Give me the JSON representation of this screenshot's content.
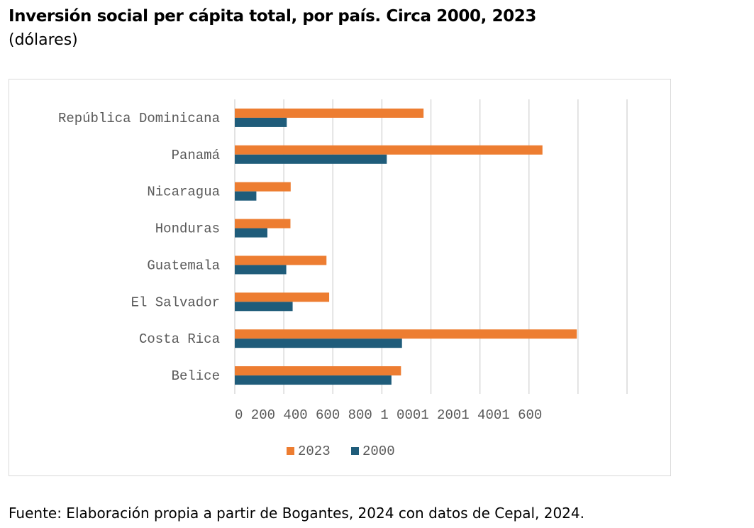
{
  "header": {
    "title": "Inversión social per cápita total, por país. Circa 2000, 2023",
    "subtitle": "(dólares)"
  },
  "footer": {
    "source": "Fuente: Elaboración propia a partir de Bogantes, 2024 con datos de Cepal, 2024."
  },
  "colors": {
    "series_2023": "#ed7d31",
    "series_2000": "#1f5c7a",
    "grid": "#d9d9d9",
    "label_text": "#595959"
  },
  "chart_data": {
    "type": "bar",
    "orientation": "horizontal",
    "title": "Inversión social per cápita total, por país. Circa 2000, 2023",
    "subtitle": "(dólares)",
    "categories": [
      "República Dominicana",
      "Panamá",
      "Nicaragua",
      "Honduras",
      "Guatemala",
      "El Salvador",
      "Costa Rica",
      "Belice"
    ],
    "series": [
      {
        "name": "2023",
        "values": [
          770,
          1255,
          228,
          227,
          374,
          385,
          1395,
          678
        ]
      },
      {
        "name": "2000",
        "values": [
          212,
          620,
          88,
          133,
          210,
          236,
          682,
          639
        ]
      }
    ],
    "x_tick_labels": [
      "0",
      "200",
      "400",
      "600",
      "800",
      "1 000",
      "1 200",
      "1 400",
      "1 600"
    ],
    "x_tick_labels_as_printed": "0 200 400 600 800 1 0001 2001 4001 600",
    "xlim": [
      0,
      1600
    ],
    "grid": "vertical",
    "legend": {
      "position": "bottom",
      "entries": [
        "2023",
        "2000"
      ]
    },
    "xlabel": "",
    "ylabel": ""
  }
}
